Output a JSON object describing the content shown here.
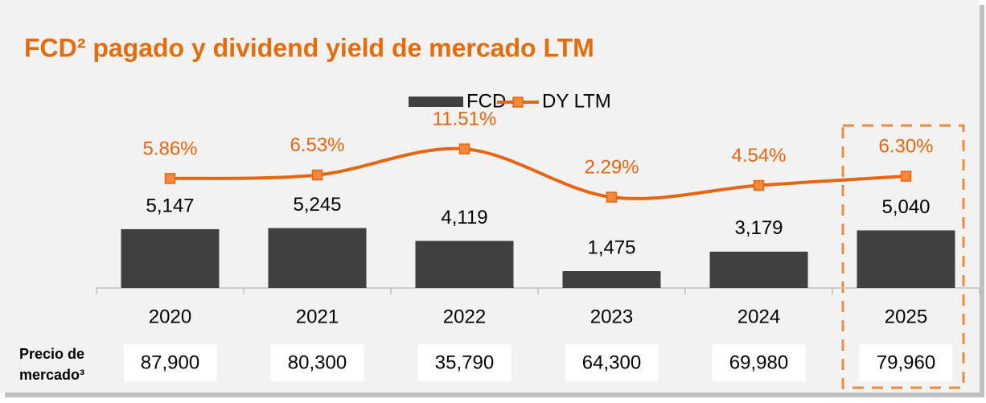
{
  "chart_data": {
    "type": "bar",
    "title": "FCD² pagado y dividend yield de mercado LTM",
    "categories": [
      "2020",
      "2021",
      "2022",
      "2023",
      "2024",
      "2025"
    ],
    "series": [
      {
        "name": "FCD",
        "type": "bar",
        "color": "#404040",
        "values": [
          5147,
          5245,
          4119,
          1475,
          3179,
          5040
        ],
        "value_labels": [
          "5,147",
          "5,245",
          "4,119",
          "1,475",
          "3,179",
          "5,040"
        ]
      },
      {
        "name": "DY LTM",
        "type": "line",
        "axis": "y2",
        "color": "#e8650f",
        "values": [
          5.86,
          6.53,
          11.51,
          2.29,
          4.54,
          6.3
        ],
        "value_labels": [
          "5.86%",
          "6.53%",
          "11.51%",
          "2.29%",
          "4.54%",
          "6.30%"
        ]
      }
    ],
    "price_row": {
      "label": [
        "Precio de",
        "mercado³"
      ],
      "values": [
        "87,900",
        "80,300",
        "35,790",
        "64,300",
        "69,980",
        "79,960"
      ]
    }
  }
}
